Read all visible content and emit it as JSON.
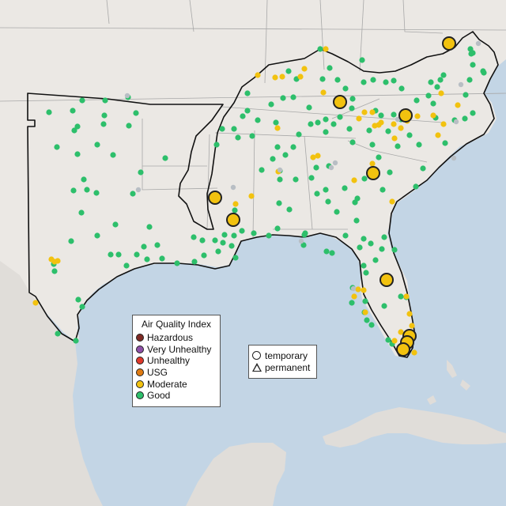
{
  "legend": {
    "title": "Air Quality Index",
    "categories": [
      {
        "label": "Hazardous",
        "color": "#7e2a24"
      },
      {
        "label": "Very Unhealthy",
        "color": "#8e50a8"
      },
      {
        "label": "Unhealthy",
        "color": "#e0392a"
      },
      {
        "label": "USG",
        "color": "#e07b12"
      },
      {
        "label": "Moderate",
        "color": "#f2c20f"
      },
      {
        "label": "Good",
        "color": "#2dbf6b"
      }
    ]
  },
  "monitor_types": {
    "temporary": "temporary",
    "permanent": "permanent"
  },
  "colors": {
    "ocean": "#c3d5e5",
    "land": "#ebe8e4",
    "mexico": "#e0ddd9",
    "boundary": "#111111",
    "state_lines": "#a8a8a8",
    "good": "#2dbf6b",
    "moderate": "#f2c20f",
    "nodata": "#b8bec4"
  }
}
